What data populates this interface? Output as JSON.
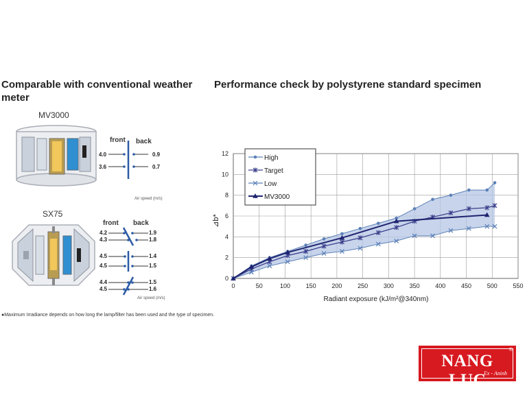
{
  "left_section": {
    "title": "Comparable with conventional weather meter",
    "mv3000": {
      "label": "MV3000",
      "front_label": "front",
      "back_label": "back",
      "front_speeds": [
        "4.0",
        "3.6"
      ],
      "back_speeds": [
        "0.9",
        "0.7"
      ],
      "air_speed_label": "Air speed (m/s)"
    },
    "sx75": {
      "label": "SX75",
      "front_label": "front",
      "back_label": "back",
      "front_speeds": [
        "4.2",
        "4.3",
        "4.5",
        "4.5",
        "4.4",
        "4.5"
      ],
      "back_speeds": [
        "1.9",
        "1.8",
        "1.4",
        "1.5",
        "1.5",
        "1.6"
      ],
      "air_speed_label": "Air speed (m/s)"
    }
  },
  "right_section": {
    "title": "Performance check by polystyrene standard specimen"
  },
  "chart_data": {
    "type": "line",
    "xlabel": "Radiant exposure (kJ/m²@340nm)",
    "ylabel": "⊿b*",
    "xlim": [
      0,
      550
    ],
    "ylim": [
      0,
      12
    ],
    "xticks": [
      0,
      50,
      100,
      150,
      200,
      250,
      300,
      350,
      400,
      450,
      500,
      550
    ],
    "yticks": [
      0,
      2,
      4,
      6,
      8,
      10,
      12
    ],
    "grid": true,
    "legend_position": "top-left",
    "series": [
      {
        "name": "High",
        "marker": "circle",
        "color": "#5b80b8",
        "x": [
          0,
          35,
          70,
          105,
          140,
          175,
          210,
          245,
          280,
          315,
          350,
          385,
          420,
          455,
          490,
          505
        ],
        "y": [
          0,
          1.2,
          2.0,
          2.6,
          3.2,
          3.8,
          4.3,
          4.8,
          5.3,
          5.8,
          6.7,
          7.6,
          8.0,
          8.5,
          8.5,
          9.2
        ]
      },
      {
        "name": "Target",
        "marker": "cross",
        "color": "#3b3f8c",
        "x": [
          0,
          35,
          70,
          105,
          140,
          175,
          210,
          245,
          280,
          315,
          350,
          385,
          420,
          455,
          490,
          505
        ],
        "y": [
          0,
          0.9,
          1.6,
          2.2,
          2.6,
          3.1,
          3.5,
          3.9,
          4.4,
          4.9,
          5.5,
          5.9,
          6.3,
          6.7,
          6.8,
          7.0
        ]
      },
      {
        "name": "Low",
        "marker": "x",
        "color": "#5b80b8",
        "x": [
          0,
          35,
          70,
          105,
          140,
          175,
          210,
          245,
          280,
          315,
          350,
          385,
          420,
          455,
          490,
          505
        ],
        "y": [
          0,
          0.6,
          1.2,
          1.6,
          2.0,
          2.4,
          2.6,
          2.9,
          3.3,
          3.6,
          4.1,
          4.1,
          4.6,
          4.8,
          5.0,
          5.0
        ]
      },
      {
        "name": "MV3000",
        "marker": "triangle",
        "color": "#1f2470",
        "x": [
          0,
          35,
          70,
          105,
          210,
          315,
          490
        ],
        "y": [
          0,
          1.1,
          1.9,
          2.5,
          3.9,
          5.5,
          6.1
        ]
      }
    ]
  },
  "footnote": "●Maximum Irradiance depends on how long the lamp/filter has been used and the type of specimen.",
  "logo": {
    "main": "NANG LUC",
    "sub": "Ex - Aninh",
    "reg": "®"
  }
}
